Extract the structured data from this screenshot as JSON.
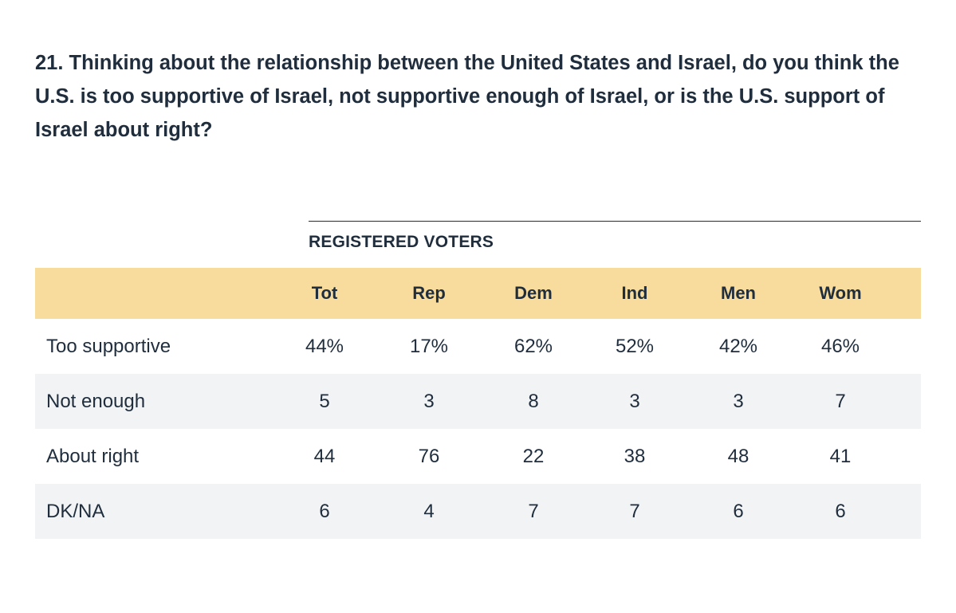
{
  "question": "21. Thinking about the relationship between the United States and Israel, do you think the U.S. is too supportive of Israel, not supportive enough of Israel, or is the U.S. support of Israel about right?",
  "group_label": "REGISTERED VOTERS",
  "columns": [
    "Tot",
    "Rep",
    "Dem",
    "Ind",
    "Men",
    "Wom"
  ],
  "rows": [
    {
      "label": "Too supportive",
      "values": [
        "44%",
        "17%",
        "62%",
        "52%",
        "42%",
        "46%"
      ]
    },
    {
      "label": "Not enough",
      "values": [
        "5",
        "3",
        "8",
        "3",
        "3",
        "7"
      ]
    },
    {
      "label": "About right",
      "values": [
        "44",
        "76",
        "22",
        "38",
        "48",
        "41"
      ]
    },
    {
      "label": "DK/NA",
      "values": [
        "6",
        "4",
        "7",
        "7",
        "6",
        "6"
      ]
    }
  ],
  "colors": {
    "header_bg": "#f8dc9d",
    "stripe_bg": "#f1f3f5",
    "text": "#1f2d3d"
  }
}
